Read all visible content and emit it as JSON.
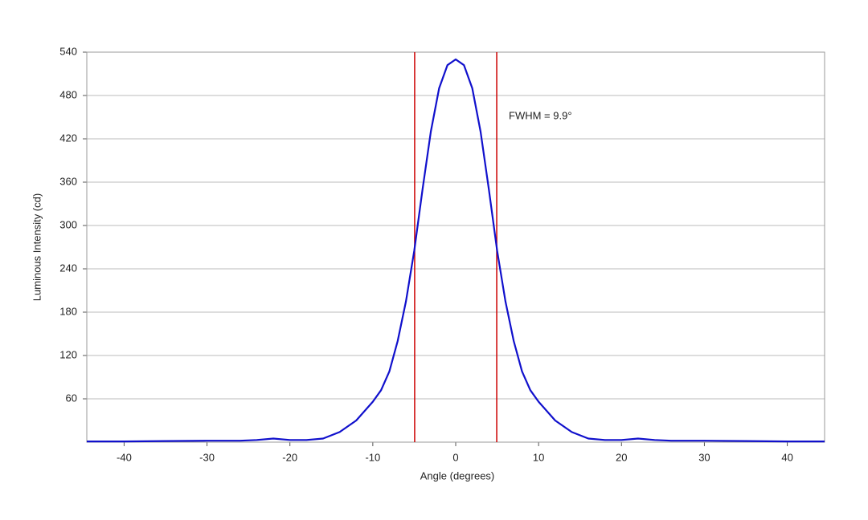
{
  "chart_data": {
    "type": "line",
    "x_label": "Angle (degrees)",
    "y_label": "Luminous Intensity (cd)",
    "annotation": "FWHM = 9.9°",
    "x": [
      -44.5,
      -40,
      -35,
      -30,
      -26,
      -24,
      -22,
      -20,
      -18,
      -16,
      -14,
      -12,
      -10,
      -9,
      -8,
      -7,
      -6,
      -5,
      -4,
      -3,
      -2,
      -1,
      0,
      1,
      2,
      3,
      4,
      5,
      6,
      7,
      8,
      9,
      10,
      12,
      14,
      16,
      18,
      20,
      22,
      24,
      26,
      30,
      35,
      40,
      44.5
    ],
    "series": [
      {
        "color": "#1010cc",
        "values": [
          1,
          1,
          1.5,
          2,
          2,
          3,
          5,
          3,
          3,
          5,
          14,
          30,
          56,
          72,
          98,
          140,
          195,
          265,
          350,
          430,
          490,
          522,
          530,
          522,
          490,
          430,
          350,
          265,
          195,
          140,
          98,
          72,
          56,
          30,
          14,
          5,
          3,
          3,
          5,
          3,
          2,
          2,
          1.5,
          1,
          1
        ]
      }
    ],
    "vlines": [
      -4.95,
      4.95
    ],
    "vline_color": "#cc0000",
    "xlim": [
      -44.5,
      44.5
    ],
    "xticks": [
      -40,
      -30,
      -20,
      -10,
      0,
      10,
      20,
      30,
      40
    ],
    "ylim": [
      0,
      540
    ],
    "yticks": [
      60,
      120,
      180,
      240,
      300,
      360,
      420,
      480,
      540
    ],
    "grid": true
  }
}
